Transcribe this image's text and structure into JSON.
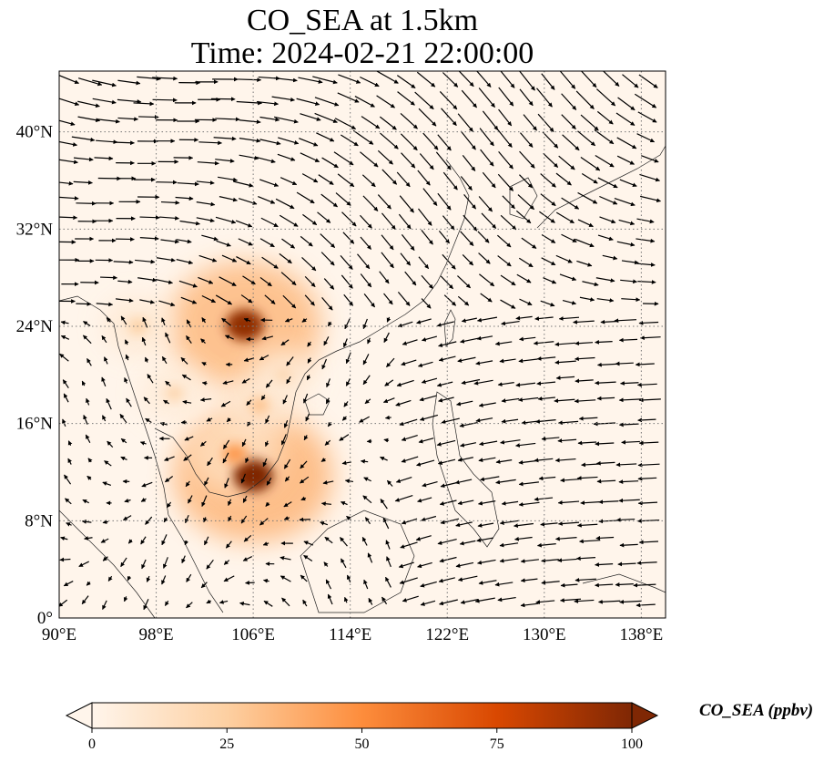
{
  "title": {
    "line1": "CO_SEA at 1.5km",
    "line2": "Time: 2024-02-21 22:00:00"
  },
  "map": {
    "lon_range": [
      90,
      140
    ],
    "lat_range": [
      0,
      45
    ],
    "lon_ticks": [
      {
        "value": 90,
        "label": "90°E"
      },
      {
        "value": 98,
        "label": "98°E"
      },
      {
        "value": 106,
        "label": "106°E"
      },
      {
        "value": 114,
        "label": "114°E"
      },
      {
        "value": 122,
        "label": "122°E"
      },
      {
        "value": 130,
        "label": "130°E"
      },
      {
        "value": 138,
        "label": "138°E"
      }
    ],
    "lat_ticks": [
      {
        "value": 0,
        "label": "0°"
      },
      {
        "value": 8,
        "label": "8°N"
      },
      {
        "value": 16,
        "label": "16°N"
      },
      {
        "value": 24,
        "label": "24°N"
      },
      {
        "value": 32,
        "label": "32°N"
      },
      {
        "value": 40,
        "label": "40°N"
      }
    ],
    "gridlines": true,
    "wind_vectors": "quiver",
    "concentration_hotspots": [
      {
        "lon": 106.0,
        "lat": 11.7,
        "value": 100
      },
      {
        "lon": 105.3,
        "lat": 24.1,
        "value": 95
      },
      {
        "lon": 104.5,
        "lat": 13.5,
        "value": 45
      },
      {
        "lon": 106.5,
        "lat": 17.5,
        "value": 30
      },
      {
        "lon": 96.5,
        "lat": 24.0,
        "value": 25
      },
      {
        "lon": 99.5,
        "lat": 18.5,
        "value": 22
      },
      {
        "lon": 108.5,
        "lat": 20.0,
        "value": 20
      }
    ]
  },
  "colorbar": {
    "label": "CO_SEA (ppbv)",
    "min": 0,
    "max": 100,
    "extend": "both",
    "ticks": [
      {
        "value": 0,
        "label": "0"
      },
      {
        "value": 25,
        "label": "25"
      },
      {
        "value": 50,
        "label": "50"
      },
      {
        "value": 75,
        "label": "75"
      },
      {
        "value": 100,
        "label": "100"
      }
    ],
    "colors": [
      "#fff5eb",
      "#fdd0a2",
      "#fd8d3c",
      "#d94801",
      "#7f2704"
    ]
  }
}
